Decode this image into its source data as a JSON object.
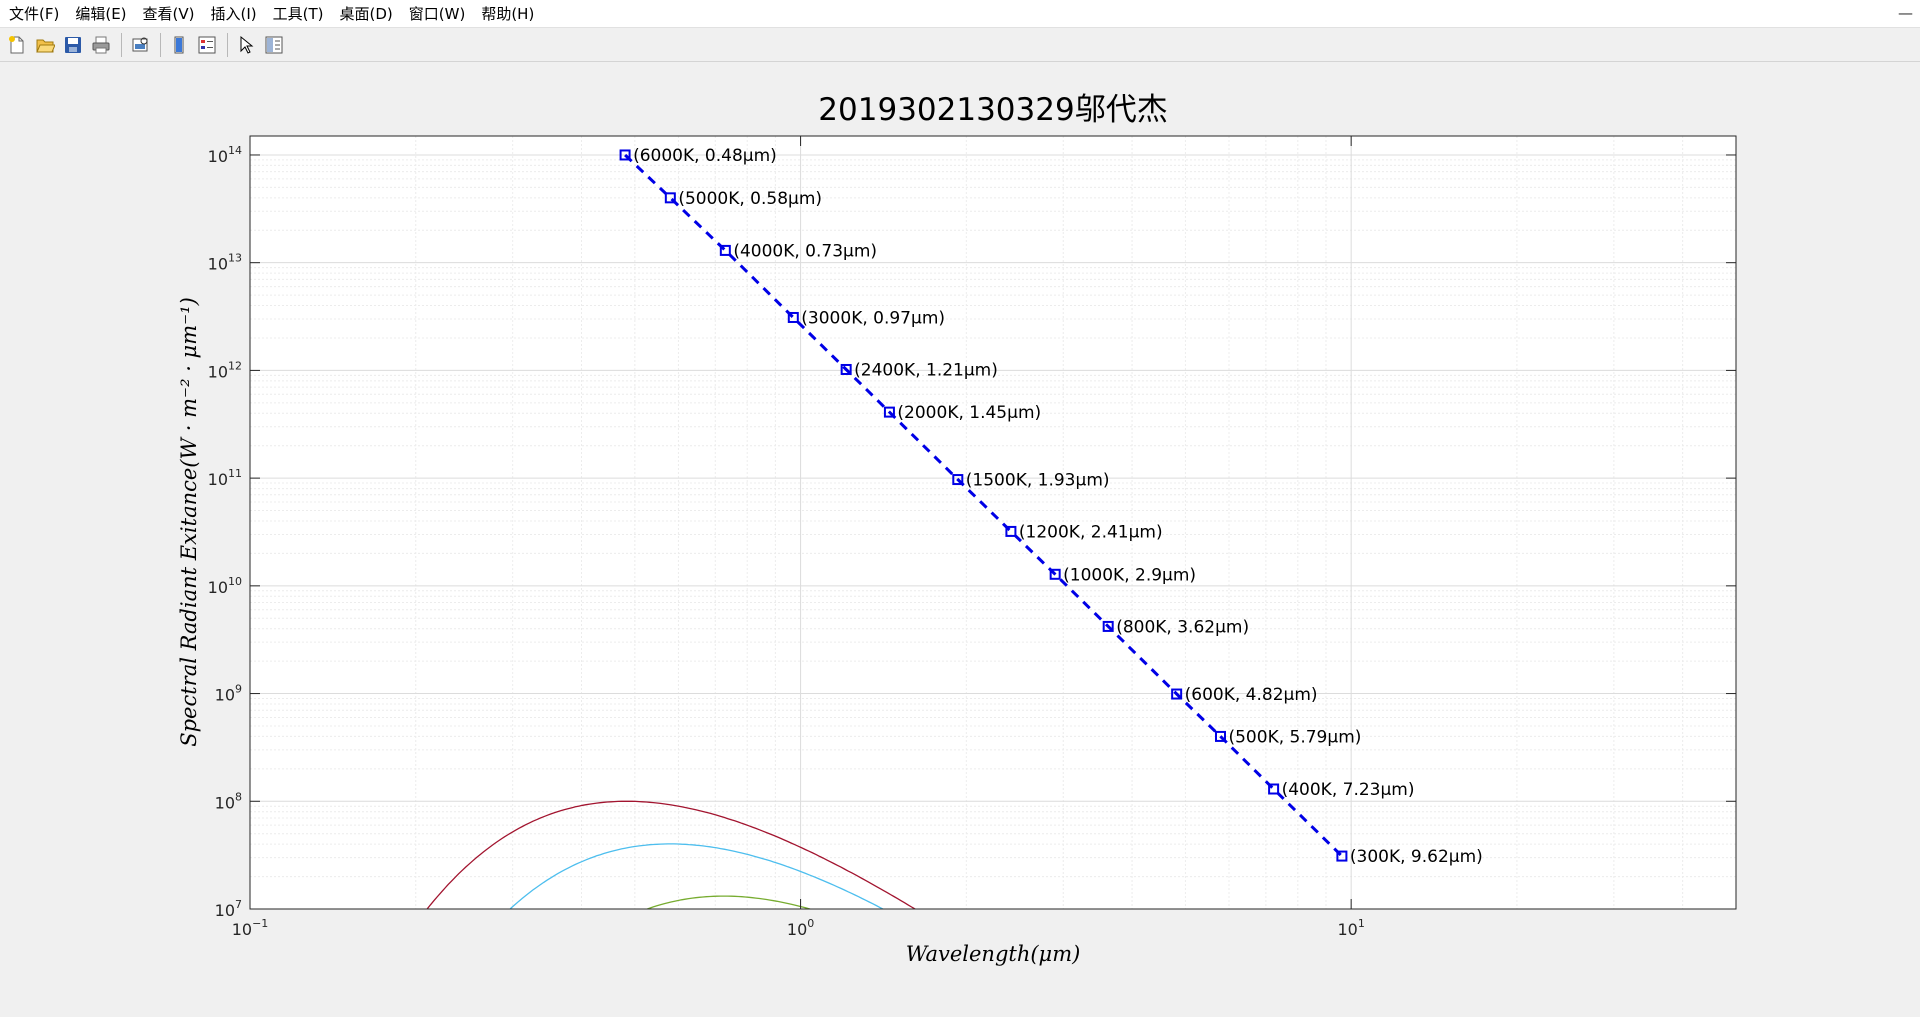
{
  "menu": {
    "items": [
      "文件(F)",
      "编辑(E)",
      "查看(V)",
      "插入(I)",
      "工具(T)",
      "桌面(D)",
      "窗口(W)",
      "帮助(H)"
    ],
    "minimize_glyph": "—"
  },
  "toolbar": {
    "buttons": [
      "new-figure-icon",
      "open-file-icon",
      "save-icon",
      "print-icon",
      "print-preview-icon",
      "colorbar-icon",
      "legend-icon",
      "select-pointer-icon",
      "property-editor-icon"
    ]
  },
  "colors": {
    "series": [
      "#a2142f",
      "#4dbeee",
      "#77ac30",
      "#7e2f8e",
      "#edb120",
      "#d95319",
      "#0072bd"
    ],
    "wien_line": "#0000e6"
  },
  "chart_data": {
    "type": "line",
    "title": "2019302130329邬代杰",
    "xlabel": "Wavelength(μm)",
    "ylabel": "Spectral Radiant Exitance(W · m⁻² · μm⁻¹)",
    "xscale": "log",
    "yscale": "log",
    "xlim": [
      0.1,
      50
    ],
    "ylim": [
      10000000,
      150000000000000
    ],
    "grid": true,
    "x_ticks": [
      {
        "base": "10",
        "exp": "−1",
        "value": 0.1
      },
      {
        "base": "10",
        "exp": "0",
        "value": 1
      },
      {
        "base": "10",
        "exp": "1",
        "value": 10
      }
    ],
    "y_ticks": [
      {
        "base": "10",
        "exp": "7",
        "value": 10000000
      },
      {
        "base": "10",
        "exp": "8",
        "value": 100000000
      },
      {
        "base": "10",
        "exp": "9",
        "value": 1000000000
      },
      {
        "base": "10",
        "exp": "10",
        "value": 10000000000
      },
      {
        "base": "10",
        "exp": "11",
        "value": 100000000000
      },
      {
        "base": "10",
        "exp": "12",
        "value": 1000000000000
      },
      {
        "base": "10",
        "exp": "13",
        "value": 10000000000000
      },
      {
        "base": "10",
        "exp": "14",
        "value": 100000000000000
      }
    ],
    "series": [
      {
        "name": "6000K",
        "temperature": 6000
      },
      {
        "name": "5000K",
        "temperature": 5000
      },
      {
        "name": "4000K",
        "temperature": 4000
      },
      {
        "name": "3000K",
        "temperature": 3000
      },
      {
        "name": "2400K",
        "temperature": 2400
      },
      {
        "name": "2000K",
        "temperature": 2000
      },
      {
        "name": "1500K",
        "temperature": 1500
      },
      {
        "name": "1200K",
        "temperature": 1200
      },
      {
        "name": "1000K",
        "temperature": 1000
      },
      {
        "name": "800K",
        "temperature": 800
      },
      {
        "name": "600K",
        "temperature": 600
      },
      {
        "name": "500K",
        "temperature": 500
      },
      {
        "name": "400K",
        "temperature": 400
      },
      {
        "name": "300K",
        "temperature": 300
      }
    ],
    "peaks": [
      {
        "label": "(6000K, 0.48μm)",
        "x": 0.48,
        "y": 100000000000000
      },
      {
        "label": "(5000K, 0.58μm)",
        "x": 0.58,
        "y": 40000000000000
      },
      {
        "label": "(4000K, 0.73μm)",
        "x": 0.73,
        "y": 13000000000000
      },
      {
        "label": "(3000K, 0.97μm)",
        "x": 0.97,
        "y": 3100000000000
      },
      {
        "label": "(2400K, 1.21μm)",
        "x": 1.21,
        "y": 1020000000000
      },
      {
        "label": "(2000K, 1.45μm)",
        "x": 1.45,
        "y": 410000000000
      },
      {
        "label": "(1500K, 1.93μm)",
        "x": 1.93,
        "y": 97000000000
      },
      {
        "label": "(1200K, 2.41μm)",
        "x": 2.41,
        "y": 32000000000
      },
      {
        "label": "(1000K, 2.9μm)",
        "x": 2.9,
        "y": 12800000000
      },
      {
        "label": "(800K, 3.62μm)",
        "x": 3.62,
        "y": 4200000000
      },
      {
        "label": "(600K, 4.82μm)",
        "x": 4.82,
        "y": 990000000
      },
      {
        "label": "(500K, 5.79μm)",
        "x": 5.79,
        "y": 400000000
      },
      {
        "label": "(400K, 7.23μm)",
        "x": 7.23,
        "y": 130000000
      },
      {
        "label": "(300K, 9.62μm)",
        "x": 9.62,
        "y": 31000000
      }
    ]
  }
}
